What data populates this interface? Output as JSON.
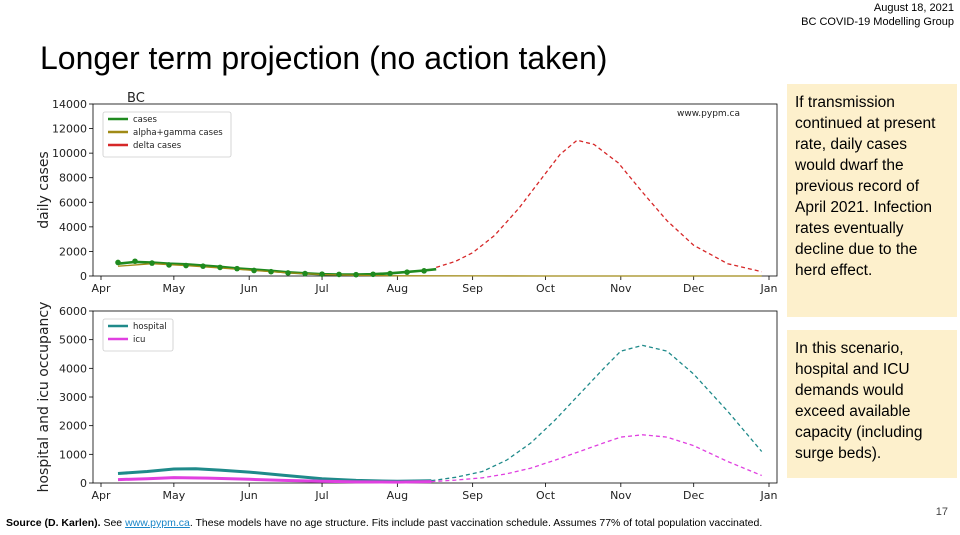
{
  "header": {
    "date": "August 18, 2021",
    "org": "BC COVID-19 Modelling Group"
  },
  "slide_title": "Longer term projection (no action taken)",
  "notes": [
    "If transmission continued at present rate, daily cases would dwarf the previous record of April 2021. Infection rates eventually decline due to the herd effect.",
    "In this scenario, hospital and ICU demands would exceed available capacity (including surge beds)."
  ],
  "footer": {
    "source": "Source (D. Karlen).",
    "see": " See ",
    "link": "www.pypm.ca",
    "rest": ". These models have no age structure. Fits include past vaccination schedule. Assumes 77% of total population vaccinated."
  },
  "page_number": "17",
  "colors": {
    "cases": "#1f8a1f",
    "alpha_gamma": "#a08a16",
    "delta": "#d62728",
    "hospital": "#1f8a8a",
    "icu": "#e040e0",
    "note_bg": "#fdf0cc"
  },
  "chart_data": [
    {
      "type": "line",
      "title": "BC",
      "annotation": "www.pypm.ca",
      "xlabel": "",
      "ylabel": "daily cases",
      "x_ticks": [
        "Apr",
        "May",
        "Jun",
        "Jul",
        "Aug",
        "Sep",
        "Oct",
        "Nov",
        "Dec",
        "Jan"
      ],
      "xlim": [
        "2021-04-01",
        "2022-01-01"
      ],
      "ylim": [
        0,
        14000
      ],
      "y_ticks": [
        0,
        2000,
        4000,
        6000,
        8000,
        10000,
        12000,
        14000
      ],
      "grid": false,
      "legend": "top-left",
      "series": [
        {
          "name": "cases",
          "style": "solid",
          "x": [
            "2021-04-08",
            "2021-04-15",
            "2021-04-22",
            "2021-04-29",
            "2021-05-06",
            "2021-05-13",
            "2021-05-20",
            "2021-05-27",
            "2021-06-03",
            "2021-06-10",
            "2021-06-17",
            "2021-06-24",
            "2021-07-01",
            "2021-07-08",
            "2021-07-15",
            "2021-07-22",
            "2021-07-29",
            "2021-08-05",
            "2021-08-12",
            "2021-08-17"
          ],
          "y": [
            1000,
            1150,
            1100,
            1000,
            950,
            850,
            750,
            620,
            520,
            420,
            300,
            220,
            150,
            120,
            120,
            150,
            220,
            330,
            450,
            550
          ]
        },
        {
          "name": "alpha+gamma cases",
          "style": "solid",
          "x": [
            "2021-04-08",
            "2021-04-22",
            "2021-05-06",
            "2021-05-20",
            "2021-06-03",
            "2021-06-17",
            "2021-07-01",
            "2021-07-15",
            "2021-08-01",
            "2021-09-01",
            "2021-10-01",
            "2021-11-01",
            "2021-12-01",
            "2021-12-29"
          ],
          "y": [
            800,
            1000,
            850,
            650,
            450,
            250,
            120,
            60,
            20,
            5,
            0,
            0,
            0,
            0
          ]
        },
        {
          "name": "delta cases",
          "style": "dashed",
          "x": [
            "2021-08-17",
            "2021-08-25",
            "2021-09-01",
            "2021-09-10",
            "2021-09-20",
            "2021-09-30",
            "2021-10-07",
            "2021-10-14",
            "2021-10-21",
            "2021-10-31",
            "2021-11-10",
            "2021-11-20",
            "2021-12-01",
            "2021-12-15",
            "2021-12-29"
          ],
          "y": [
            700,
            1200,
            1900,
            3300,
            5500,
            8100,
            9900,
            11050,
            10700,
            9200,
            6800,
            4500,
            2500,
            1000,
            350
          ]
        },
        {
          "name": "data",
          "style": "markers",
          "x": [
            "2021-04-08",
            "2021-04-15",
            "2021-04-22",
            "2021-04-29",
            "2021-05-06",
            "2021-05-13",
            "2021-05-20",
            "2021-05-27",
            "2021-06-03",
            "2021-06-10",
            "2021-06-17",
            "2021-06-24",
            "2021-07-01",
            "2021-07-08",
            "2021-07-15",
            "2021-07-22",
            "2021-07-29",
            "2021-08-05",
            "2021-08-12"
          ],
          "y": [
            1100,
            1200,
            1050,
            900,
            850,
            800,
            700,
            600,
            450,
            350,
            250,
            200,
            150,
            130,
            110,
            140,
            200,
            310,
            420
          ]
        }
      ]
    },
    {
      "type": "line",
      "ylabel": "hospital and icu occupancy",
      "x_ticks": [
        "Apr",
        "May",
        "Jun",
        "Jul",
        "Aug",
        "Sep",
        "Oct",
        "Nov",
        "Dec",
        "Jan"
      ],
      "xlim": [
        "2021-04-01",
        "2022-01-01"
      ],
      "ylim": [
        0,
        6000
      ],
      "y_ticks": [
        0,
        1000,
        2000,
        3000,
        4000,
        5000,
        6000
      ],
      "grid": false,
      "legend": "top-left",
      "series": [
        {
          "name": "hospital",
          "x": [
            "2021-04-08",
            "2021-04-20",
            "2021-05-01",
            "2021-05-10",
            "2021-05-20",
            "2021-06-01",
            "2021-06-15",
            "2021-07-01",
            "2021-07-15",
            "2021-08-01",
            "2021-08-15",
            "2021-08-25",
            "2021-09-05",
            "2021-09-15",
            "2021-09-25",
            "2021-10-05",
            "2021-10-15",
            "2021-10-25",
            "2021-11-01",
            "2021-11-10",
            "2021-11-20",
            "2021-12-01",
            "2021-12-15",
            "2021-12-29"
          ],
          "y": [
            330,
            400,
            490,
            500,
            450,
            380,
            270,
            150,
            90,
            60,
            80,
            200,
            400,
            800,
            1400,
            2200,
            3100,
            4000,
            4600,
            4800,
            4600,
            3800,
            2500,
            1100
          ]
        },
        {
          "name": "icu",
          "x": [
            "2021-04-08",
            "2021-04-20",
            "2021-05-01",
            "2021-05-15",
            "2021-06-01",
            "2021-06-15",
            "2021-07-01",
            "2021-07-15",
            "2021-08-01",
            "2021-08-15",
            "2021-08-25",
            "2021-09-05",
            "2021-09-15",
            "2021-09-25",
            "2021-10-05",
            "2021-10-15",
            "2021-10-25",
            "2021-11-01",
            "2021-11-10",
            "2021-11-20",
            "2021-12-01",
            "2021-12-15",
            "2021-12-29"
          ],
          "y": [
            120,
            150,
            190,
            170,
            130,
            90,
            60,
            40,
            30,
            50,
            100,
            180,
            320,
            520,
            800,
            1100,
            1400,
            1600,
            1680,
            1600,
            1300,
            750,
            260
          ]
        }
      ]
    }
  ]
}
